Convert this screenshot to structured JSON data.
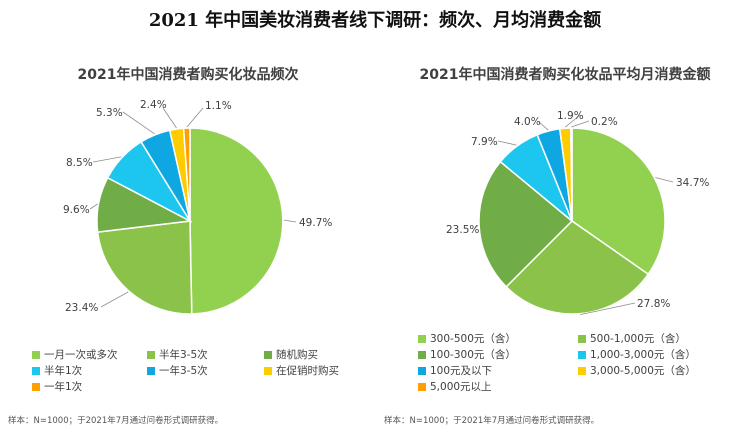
{
  "page_title": "2021 年中国美妆消费者线下调研：频次、月均消费金额",
  "chart_data": [
    {
      "type": "pie",
      "title": "2021年中国消费者购买化妆品频次",
      "slices": [
        {
          "label": "一月一次或多次",
          "value": 49.7,
          "value_text": "49.7%",
          "color": "#92D050"
        },
        {
          "label": "半年3-5次",
          "value": 23.4,
          "value_text": "23.4%",
          "color": "#8BC34A"
        },
        {
          "label": "随机购买",
          "value": 9.6,
          "value_text": "9.6%",
          "color": "#70AD47"
        },
        {
          "label": "半年1次",
          "value": 8.5,
          "value_text": "8.5%",
          "color": "#1CC6EE"
        },
        {
          "label": "一年3-5次",
          "value": 5.3,
          "value_text": "5.3%",
          "color": "#0EA7E1"
        },
        {
          "label": "在促销时购买",
          "value": 2.4,
          "value_text": "2.4%",
          "color": "#FFCC00"
        },
        {
          "label": "一年1次",
          "value": 1.1,
          "value_text": "1.1%",
          "color": "#FFA000"
        }
      ],
      "note": "样本：N=1000；于2021年7月通过问卷形式调研获得。"
    },
    {
      "type": "pie",
      "title": "2021年中国消费者购买化妆品平均月消费金额",
      "slices": [
        {
          "label": "300-500元（含）",
          "value": 34.7,
          "value_text": "34.7%",
          "color": "#92D050"
        },
        {
          "label": "500-1,000元（含）",
          "value": 27.8,
          "value_text": "27.8%",
          "color": "#8BC34A"
        },
        {
          "label": "100-300元（含）",
          "value": 23.5,
          "value_text": "23.5%",
          "color": "#70AD47"
        },
        {
          "label": "1,000-3,000元（含）",
          "value": 7.9,
          "value_text": "7.9%",
          "color": "#1CC6EE"
        },
        {
          "label": "100元及以下",
          "value": 4.0,
          "value_text": "4.0%",
          "color": "#0EA7E1"
        },
        {
          "label": "3,000-5,000元（含）",
          "value": 1.9,
          "value_text": "1.9%",
          "color": "#FFCC00"
        },
        {
          "label": "5,000元以上",
          "value": 0.2,
          "value_text": "0.2%",
          "color": "#FFA000"
        }
      ],
      "note": "样本：N=1000；于2021年7月通过问卷形式调研获得。"
    }
  ]
}
